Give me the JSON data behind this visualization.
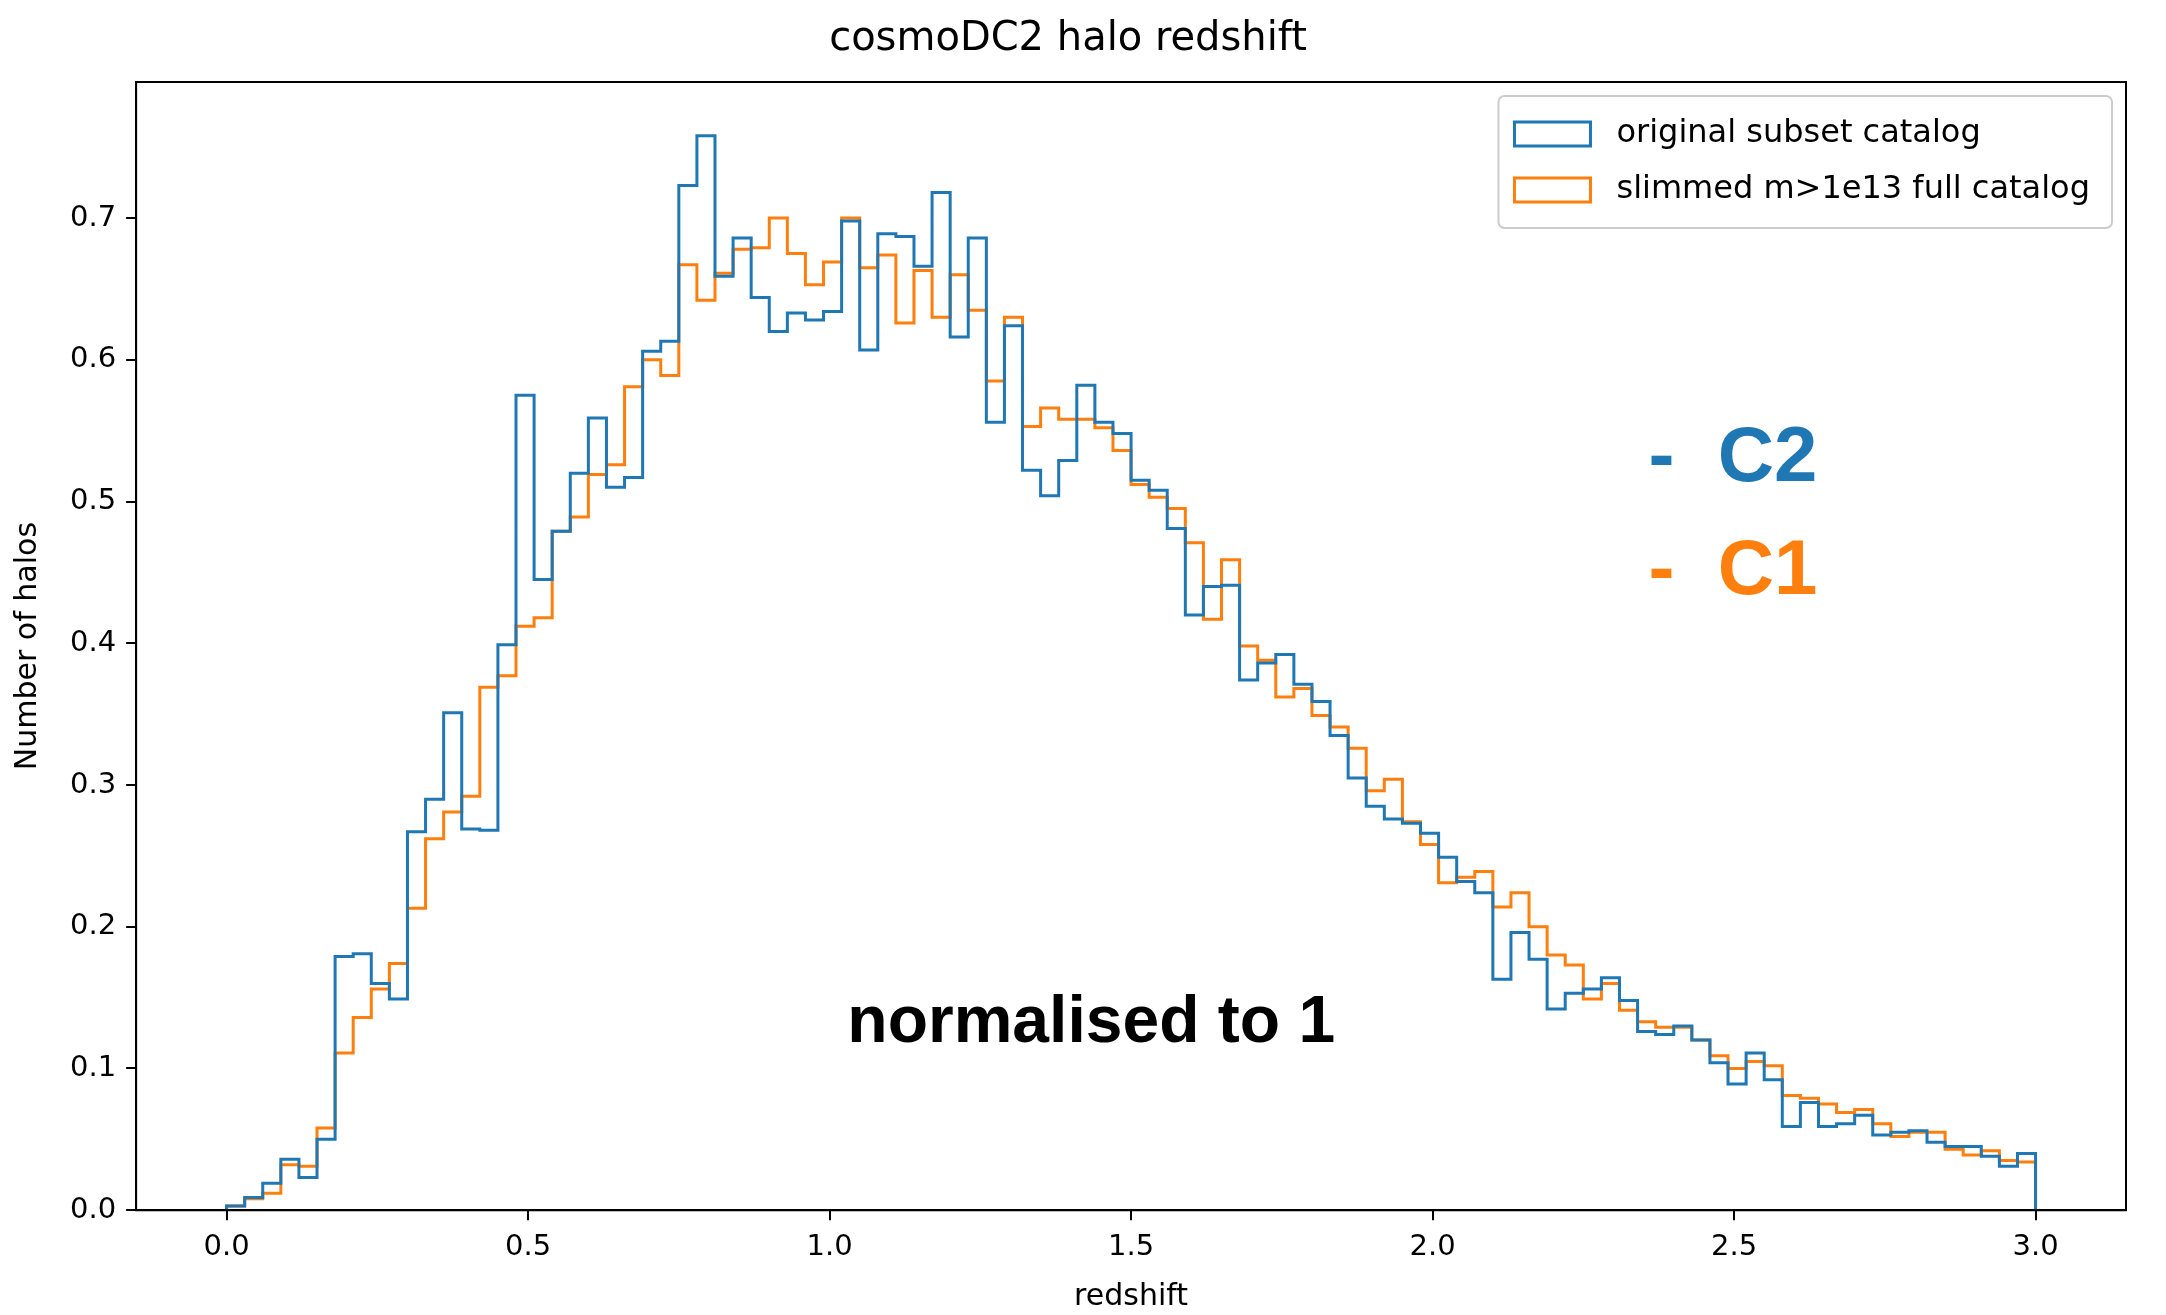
{
  "chart_data": {
    "type": "histogram",
    "title": "cosmoDC2 halo redshift",
    "xlabel": "redshift",
    "ylabel": "Number of halos",
    "bins": [
      0,
      0.03,
      0.06,
      0.09,
      0.12,
      0.15,
      0.18,
      0.21,
      0.24,
      0.27,
      0.3,
      0.33,
      0.36,
      0.39,
      0.42,
      0.45,
      0.48,
      0.51,
      0.54,
      0.57,
      0.6,
      0.63,
      0.66,
      0.69,
      0.72,
      0.75,
      0.78,
      0.81,
      0.84,
      0.87,
      0.9,
      0.93,
      0.96,
      0.99,
      1.02,
      1.05,
      1.08,
      1.11,
      1.14,
      1.17,
      1.2,
      1.23,
      1.26,
      1.29,
      1.32,
      1.35,
      1.38,
      1.41,
      1.44,
      1.47,
      1.5,
      1.53,
      1.56,
      1.59,
      1.62,
      1.65,
      1.68,
      1.71,
      1.74,
      1.77,
      1.8,
      1.83,
      1.86,
      1.89,
      1.92,
      1.95,
      1.98,
      2.01,
      2.04,
      2.07,
      2.1,
      2.13,
      2.16,
      2.19,
      2.22,
      2.25,
      2.28,
      2.31,
      2.34,
      2.37,
      2.4,
      2.43,
      2.46,
      2.49,
      2.52,
      2.55,
      2.58,
      2.61,
      2.64,
      2.67,
      2.7,
      2.73,
      2.76,
      2.79,
      2.82,
      2.85,
      2.88,
      2.91,
      2.94,
      2.97,
      3.0
    ],
    "series": [
      {
        "name": "original subset catalog",
        "color": "#1f77b4",
        "values": [
          0.003,
          0.009,
          0.019,
          0.036,
          0.023,
          0.05,
          0.179,
          0.181,
          0.16,
          0.149,
          0.267,
          0.29,
          0.351,
          0.269,
          0.268,
          0.399,
          0.575,
          0.445,
          0.479,
          0.52,
          0.559,
          0.51,
          0.517,
          0.606,
          0.613,
          0.723,
          0.758,
          0.659,
          0.686,
          0.644,
          0.62,
          0.633,
          0.628,
          0.634,
          0.698,
          0.607,
          0.689,
          0.687,
          0.666,
          0.718,
          0.616,
          0.686,
          0.556,
          0.624,
          0.522,
          0.504,
          0.529,
          0.582,
          0.556,
          0.548,
          0.515,
          0.508,
          0.481,
          0.42,
          0.44,
          0.441,
          0.374,
          0.386,
          0.392,
          0.371,
          0.359,
          0.335,
          0.305,
          0.285,
          0.276,
          0.273,
          0.266,
          0.249,
          0.232,
          0.224,
          0.163,
          0.196,
          0.177,
          0.142,
          0.153,
          0.156,
          0.164,
          0.148,
          0.126,
          0.124,
          0.13,
          0.12,
          0.104,
          0.089,
          0.111,
          0.092,
          0.059,
          0.076,
          0.059,
          0.061,
          0.067,
          0.053,
          0.055,
          0.056,
          0.048,
          0.045,
          0.045,
          0.038,
          0.031,
          0.04
        ]
      },
      {
        "name": "slimmed m>1e13 full catalog",
        "color": "#ff7f0e",
        "values": [
          0.003,
          0.008,
          0.012,
          0.032,
          0.031,
          0.058,
          0.111,
          0.136,
          0.156,
          0.174,
          0.213,
          0.262,
          0.281,
          0.292,
          0.369,
          0.377,
          0.412,
          0.418,
          0.479,
          0.489,
          0.519,
          0.526,
          0.581,
          0.6,
          0.589,
          0.667,
          0.642,
          0.661,
          0.678,
          0.679,
          0.7,
          0.675,
          0.653,
          0.669,
          0.7,
          0.665,
          0.674,
          0.626,
          0.663,
          0.63,
          0.66,
          0.635,
          0.585,
          0.63,
          0.553,
          0.566,
          0.558,
          0.558,
          0.552,
          0.536,
          0.512,
          0.503,
          0.495,
          0.471,
          0.417,
          0.459,
          0.398,
          0.388,
          0.362,
          0.368,
          0.349,
          0.341,
          0.326,
          0.296,
          0.304,
          0.274,
          0.258,
          0.231,
          0.235,
          0.239,
          0.214,
          0.224,
          0.2,
          0.18,
          0.173,
          0.149,
          0.16,
          0.141,
          0.133,
          0.129,
          0.129,
          0.12,
          0.109,
          0.1,
          0.105,
          0.102,
          0.081,
          0.079,
          0.075,
          0.069,
          0.071,
          0.061,
          0.052,
          0.055,
          0.055,
          0.043,
          0.039,
          0.042,
          0.035,
          0.034
        ]
      }
    ],
    "xlim": [
      -0.15,
      3.15
    ],
    "ylim": [
      0,
      0.796
    ],
    "xticks": [
      {
        "value": 0,
        "label": "0.0"
      },
      0.5,
      {
        "value": 1,
        "label": "1.0"
      },
      1.5,
      {
        "value": 2,
        "label": "2.0"
      },
      2.5,
      {
        "value": 3,
        "label": "3.0"
      }
    ],
    "yticks": [
      {
        "value": 0,
        "label": "0.0"
      },
      0.1,
      0.2,
      0.3,
      0.4,
      0.5,
      0.6,
      0.7
    ],
    "legend": "top right",
    "annotations": [
      "normalised to 1",
      "-  C2",
      "-  C1"
    ]
  }
}
